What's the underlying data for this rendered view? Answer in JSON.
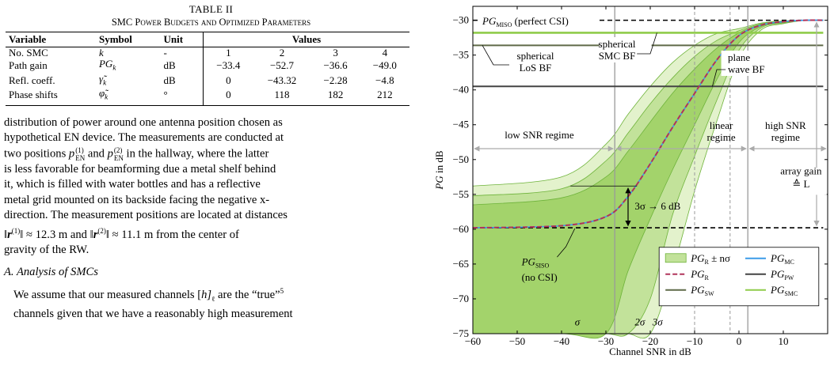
{
  "table": {
    "caption_number": "TABLE II",
    "caption_title": "SMC Power Budgets and Optimized Parameters",
    "headers": [
      "Variable",
      "Symbol",
      "Unit",
      "Values"
    ],
    "rows": [
      {
        "variable": "No. SMC",
        "symbol": "k",
        "unit": "-",
        "values": [
          "1",
          "2",
          "3",
          "4"
        ]
      },
      {
        "variable": "Path gain",
        "symbol": "PG_k",
        "unit": "dB",
        "values": [
          "−33.4",
          "−52.7",
          "−36.6",
          "−49.0"
        ]
      },
      {
        "variable": "Refl. coeff.",
        "symbol": "γ̃_k",
        "unit": "dB",
        "values": [
          "0",
          "−43.32",
          "−2.28",
          "−4.8"
        ]
      },
      {
        "variable": "Phase shifts",
        "symbol": "φ̃_k",
        "unit": "°",
        "values": [
          "0",
          "118",
          "182",
          "212"
        ]
      }
    ]
  },
  "text": {
    "p1_lines": [
      "distribution of power around one antenna position chosen as",
      "hypothetical EN device. The measurements are conducted at",
      "two positions p_EN^(1) and p_EN^(2) in the hallway, where the latter",
      "is less favorable for beamforming due a metal shelf behind",
      "it, which is filled with water bottles and has a reflective",
      "metal grid mounted on its backside facing the negative x-",
      "direction. The measurement positions are located at distances",
      "‖r^(1)‖ ≈ 12.3 m and ‖r^(2)‖ ≈ 11.1 m from the center of",
      "gravity of the RW."
    ],
    "section_title": "A. Analysis of SMCs",
    "p2_lines": [
      "We assume that our measured channels [h]_ℓ are the “true”5",
      "channels given that we have a reasonably high measurement"
    ]
  },
  "chart_data": {
    "type": "line",
    "xlabel": "Channel SNR in dB",
    "ylabel": "PG in dB",
    "xlim": [
      -60,
      20
    ],
    "ylim": [
      -75,
      -28
    ],
    "xticks": [
      -60,
      -50,
      -40,
      -30,
      -20,
      -10,
      0,
      10
    ],
    "yticks": [
      -75,
      -70,
      -65,
      -60,
      -55,
      -50,
      -45,
      -40,
      -35,
      -30
    ],
    "series": [
      {
        "name": "PG_MC",
        "color": "#3b9be8",
        "x": [
          -60,
          -40,
          -30,
          -25,
          -20,
          -15,
          -10,
          -5,
          0,
          5,
          10,
          15,
          19
        ],
        "y": [
          -59.8,
          -59.5,
          -58.2,
          -55.3,
          -50.6,
          -45.4,
          -40.5,
          -35.7,
          -32.2,
          -30.7,
          -30.2,
          -30.0,
          -30.0
        ]
      },
      {
        "name": "PG_R",
        "color": "#b0345a",
        "x": [
          -60,
          -40,
          -30,
          -25,
          -20,
          -15,
          -10,
          -5,
          0,
          5,
          10,
          15,
          19
        ],
        "y": [
          -59.8,
          -59.5,
          -58.2,
          -55.3,
          -50.6,
          -45.4,
          -40.5,
          -35.7,
          -32.2,
          -30.7,
          -30.2,
          -30.0,
          -30.0
        ]
      },
      {
        "name": "PG_PW",
        "color": "#444444",
        "x": [
          -60,
          19
        ],
        "y": [
          -39.5,
          -39.5
        ]
      },
      {
        "name": "PG_SW",
        "color": "#5f6a48",
        "x": [
          -60,
          19
        ],
        "y": [
          -33.6,
          -33.6
        ]
      },
      {
        "name": "PG_SMC",
        "color": "#8fcc4a",
        "x": [
          -60,
          19
        ],
        "y": [
          -31.8,
          -31.8
        ]
      },
      {
        "name": "PG_MISO",
        "color": "#000000",
        "x": [
          -60,
          19
        ],
        "y": [
          -30.0,
          -30.0
        ]
      },
      {
        "name": "PG_SISO",
        "color": "#000000",
        "x": [
          -60,
          19
        ],
        "y": [
          -59.8,
          -59.8
        ]
      }
    ],
    "bands": [
      {
        "label": "σ",
        "x": [
          -60,
          -40,
          -30,
          -25,
          -20,
          -15,
          -10,
          -5,
          0,
          5,
          10,
          15,
          19
        ],
        "upper": [
          -56.5,
          -55.5,
          -52.5,
          -48.8,
          -44.6,
          -40.5,
          -37.0,
          -34.0,
          -31.8,
          -30.6,
          -30.2,
          -30.0,
          -30.0
        ],
        "lower": [
          -75,
          -75,
          -75,
          -66,
          -58.5,
          -51.5,
          -45.0,
          -38.5,
          -33.2,
          -30.9,
          -30.3,
          -30.0,
          -30.0
        ]
      },
      {
        "label": "2σ",
        "x": [
          -60,
          -40,
          -30,
          -25,
          -20,
          -15,
          -10,
          -5,
          0,
          5,
          10,
          15,
          19
        ],
        "upper": [
          -55.2,
          -54.2,
          -50.2,
          -46.2,
          -42.0,
          -38.3,
          -35.2,
          -32.9,
          -31.5,
          -30.5,
          -30.1,
          -30.0,
          -30.0
        ],
        "lower": [
          -75,
          -75,
          -75,
          -75,
          -70,
          -58.0,
          -49.5,
          -41.5,
          -34.3,
          -31.1,
          -30.4,
          -30.0,
          -30.0
        ]
      },
      {
        "label": "3σ",
        "x": [
          -60,
          -40,
          -30,
          -25,
          -20,
          -15,
          -10,
          -5,
          0,
          5,
          10,
          15,
          19
        ],
        "upper": [
          -53.8,
          -52.5,
          -47.8,
          -43.5,
          -39.5,
          -36.1,
          -33.6,
          -31.9,
          -31.2,
          -30.4,
          -30.1,
          -30.0,
          -30.0
        ],
        "lower": [
          -75,
          -75,
          -75,
          -75,
          -75,
          -66.0,
          -54.5,
          -44.5,
          -35.5,
          -31.4,
          -30.5,
          -30.0,
          -30.0
        ]
      }
    ],
    "vlines_solid": [
      -28,
      2
    ],
    "vlines_dashed": [
      -10,
      -2
    ],
    "vlines_sigma": [
      -18,
      -16.5
    ],
    "annotations": {
      "miso": "PG_MISO (perfect CSI)",
      "siso_1": "PG_SISO",
      "siso_2": "(no CSI)",
      "los_1": "spherical",
      "los_2": "LoS BF",
      "smc_1": "spherical",
      "smc_2": "SMC BF",
      "pw_1": "plane",
      "pw_2": "wave BF",
      "low": "low SNR regime",
      "linear_1": "linear",
      "linear_2": "regime",
      "high_1": "high SNR",
      "high_2": "regime",
      "array_1": "array gain",
      "array_2": "≙ L",
      "sigma3": "3σ → 6 dB",
      "s1": "σ",
      "s2": "2σ",
      "s3": "3σ"
    },
    "legend": [
      {
        "label": "PG_R ± nσ",
        "kind": "band"
      },
      {
        "label": "PG_MC",
        "kind": "line",
        "color": "#3b9be8"
      },
      {
        "label": "PG_R",
        "kind": "dash",
        "color": "#b0345a"
      },
      {
        "label": "PG_PW",
        "kind": "line",
        "color": "#444444"
      },
      {
        "label": "PG_SW",
        "kind": "line",
        "color": "#5f6a48"
      },
      {
        "label": "PG_SMC",
        "kind": "line",
        "color": "#8fcc4a"
      }
    ]
  }
}
